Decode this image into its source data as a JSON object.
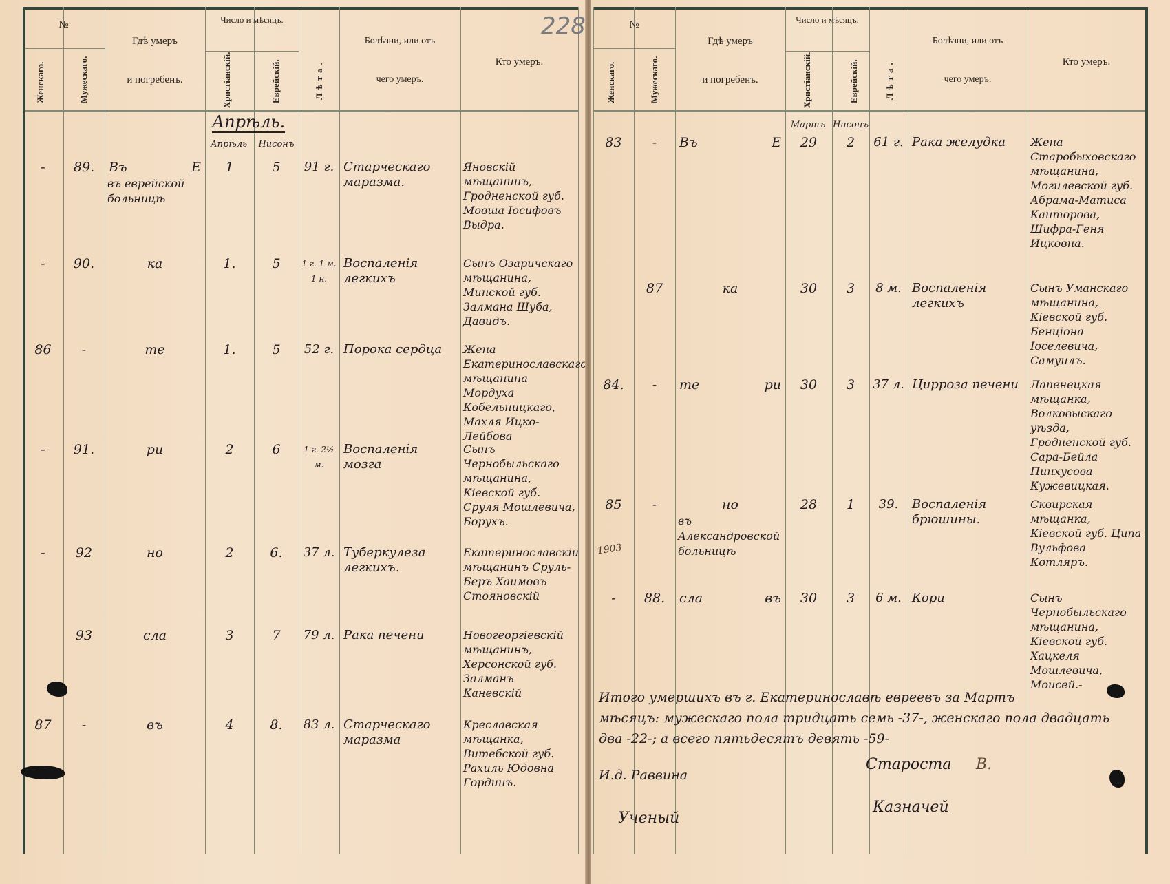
{
  "page_number": "228",
  "headers": {
    "number": "№",
    "female": "Женскаго.",
    "male": "Мужескаго.",
    "where_died_1": "Гдѣ умеръ",
    "where_died_2": "и погребенъ.",
    "date_group": "Число и мѣсяцъ.",
    "christian": "Христіанскій.",
    "jewish": "Еврейскій.",
    "age": "Лѣта.",
    "cause_1": "Болѣзни, или отъ",
    "cause_2": "чего умеръ.",
    "who": "Кто умеръ."
  },
  "left_page": {
    "month_heading": "Апрѣль.",
    "christian_month": "Апрѣль",
    "jewish_month": "Нисонъ",
    "entries": [
      {
        "female": "-",
        "male": "89.",
        "place": "Въ   Е",
        "place_2": "въ еврейской больницѣ",
        "christian": "1",
        "jewish": "5",
        "age": "91 г.",
        "cause": "Старческаго маразма.",
        "who": "Яновскій мѣщанинъ, Гродненской губ. Мовша Іосифовъ Выдра."
      },
      {
        "female": "-",
        "male": "90.",
        "place": "ка",
        "place_2": "",
        "christian": "1.",
        "jewish": "5",
        "age": "1 г. 1 м. 1 н.",
        "cause": "Воспаленія легкихъ",
        "who": "Сынъ Озаричскаго мѣщанина, Минской губ. Залмана Шуба, Давидъ."
      },
      {
        "female": "86",
        "male": "-",
        "place": "те",
        "place_2": "",
        "christian": "1.",
        "jewish": "5",
        "age": "52 г.",
        "cause": "Порока сердца",
        "who": "Жена Екатеринославскаго мѣщанина Мордуха Кобельницкаго, Махля Ицко-Лейбова"
      },
      {
        "female": "-",
        "male": "91.",
        "place": "ри",
        "place_2": "",
        "christian": "2",
        "jewish": "6",
        "age": "1 г. 2½ м.",
        "cause": "Воспаленія мозга",
        "who": "Сынъ Чернобыльскаго мѣщанина, Кіевской губ. Сруля Мошлевича, Борухъ."
      },
      {
        "female": "-",
        "male": "92",
        "place": "но",
        "place_2": "",
        "christian": "2",
        "jewish": "6.",
        "age": "37 л.",
        "cause": "Туберкулеза легкихъ.",
        "who": "Екатеринославскій мѣщанинъ Сруль-Беръ Хаимовъ Стояновскій"
      },
      {
        "female": "",
        "male": "93",
        "place": "сла",
        "place_2": "",
        "christian": "3",
        "jewish": "7",
        "age": "79 л.",
        "cause": "Рака печени",
        "who": "Новогеоргіевскій мѣщанинъ, Херсонской губ. Залманъ Каневскій"
      },
      {
        "female": "87",
        "male": "-",
        "place": "въ",
        "place_2": "",
        "christian": "4",
        "jewish": "8.",
        "age": "83 л.",
        "cause": "Старческаго маразма",
        "who": "Креславская мѣщанка, Витебской губ. Рахиль Юдовна Гординъ."
      }
    ]
  },
  "right_page": {
    "christian_month": "Мартъ",
    "jewish_month": "Нисонъ",
    "entries": [
      {
        "female": "83",
        "male": "-",
        "place": "Въ   Е",
        "place_2": "",
        "christian": "29",
        "jewish": "2",
        "age": "61 г.",
        "cause": "Рака желудка",
        "who": "Жена Старобыховскаго мѣщанина, Могилевской губ. Абрама-Матиса Канторова, Шифра-Геня Ицковна."
      },
      {
        "female": "",
        "male": "87",
        "place": "ка",
        "place_2": "",
        "christian": "30",
        "jewish": "3",
        "age": "8 м.",
        "cause": "Воспаленія легкихъ",
        "who": "Сынъ Уманскаго мѣщанина, Кіевской губ. Бенціона Іоселевича, Самуилъ."
      },
      {
        "female": "84.",
        "male": "-",
        "place": "те   ри",
        "place_2": "",
        "christian": "30",
        "jewish": "3",
        "age": "37 л.",
        "cause": "Цирроза печени",
        "who": "Лапенецкая мѣщанка, Волковыскаго уѣзда, Гродненской губ. Сара-Бейла Пинхусова Кужевицкая."
      },
      {
        "female": "85",
        "male": "-",
        "place": "но",
        "place_2": "въ Александровской больницѣ",
        "christian": "28",
        "jewish": "1",
        "age": "39.",
        "cause": "Воспаленія брюшины.",
        "who": "Сквирская мѣщанка, Кіевской губ. Ципа Вульфова Котляръ."
      },
      {
        "female": "-",
        "male": "88.",
        "place": "сла   въ",
        "place_2": "",
        "christian": "30",
        "jewish": "3",
        "age": "6 м.",
        "cause": "Кори",
        "who": "Сынъ Чернобыльскаго мѣщанина, Кіевской губ. Хацкеля Мошлевича, Моисей.-"
      }
    ],
    "margin_note": "1903",
    "summary": [
      "Итого умершихъ въ г. Екатеринославѣ евреевъ за Мартъ",
      "мѣсяцъ: мужескаго пола тридцать семь -37-, женскаго пола двадцать",
      "два -22-; а всего пятьдесятъ девять -59-"
    ],
    "signatures": {
      "rabbi": "И.д. Раввина",
      "elder": "Староста",
      "elder_sign": "В.",
      "scholar": "Ученый",
      "treasurer": "Казначей"
    }
  }
}
